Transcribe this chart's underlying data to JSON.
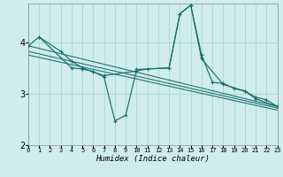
{
  "xlabel": "Humidex (Indice chaleur)",
  "bg_color": "#d0ecec",
  "grid_color": "#a8d8d8",
  "line_color": "#1a6e6e",
  "xlim": [
    0,
    23
  ],
  "ylim": [
    2.0,
    4.75
  ],
  "yticks": [
    2,
    3,
    4
  ],
  "xticks": [
    0,
    1,
    2,
    3,
    4,
    5,
    6,
    7,
    8,
    9,
    10,
    11,
    12,
    13,
    14,
    15,
    16,
    17,
    18,
    19,
    20,
    21,
    22,
    23
  ],
  "series": [
    {
      "x": [
        0,
        1,
        3,
        4,
        5,
        6,
        7,
        10,
        11,
        13,
        14,
        15,
        16,
        17,
        18,
        19,
        20,
        21,
        22,
        23
      ],
      "y": [
        3.93,
        4.1,
        3.82,
        3.63,
        3.5,
        3.42,
        3.35,
        3.44,
        3.48,
        3.5,
        4.55,
        4.72,
        3.75,
        3.22,
        3.2,
        3.1,
        3.05,
        2.93,
        2.88,
        2.75
      ],
      "markers": true
    },
    {
      "x": [
        1,
        4,
        5,
        6,
        7,
        8,
        9,
        10,
        13,
        14,
        15,
        16,
        18,
        20,
        21,
        23
      ],
      "y": [
        4.1,
        3.5,
        3.48,
        3.43,
        3.32,
        2.47,
        2.58,
        3.47,
        3.5,
        4.55,
        4.72,
        3.68,
        3.18,
        3.05,
        2.9,
        2.75
      ],
      "markers": true
    },
    {
      "x": [
        0,
        23
      ],
      "y": [
        3.93,
        2.75
      ],
      "markers": false
    },
    {
      "x": [
        0,
        23
      ],
      "y": [
        3.82,
        2.72
      ],
      "markers": false
    },
    {
      "x": [
        0,
        23
      ],
      "y": [
        3.75,
        2.68
      ],
      "markers": false
    }
  ]
}
